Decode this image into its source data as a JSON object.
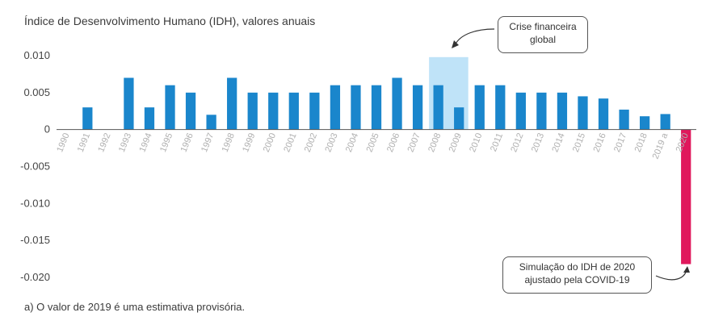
{
  "title": "Índice de Desenvolvimento Humano (IDH), valores anuais",
  "footnote": "a) O valor de 2019 é uma estimativa provisória.",
  "annotations": {
    "crisis": [
      "Crise financeira",
      "global"
    ],
    "covid": [
      "Simulação do IDH de 2020",
      "ajustado pela COVID-19"
    ]
  },
  "colors": {
    "bar": "#1a86cc",
    "bar_2020": "#e0185c",
    "crisis_band": "#bfe3f8",
    "axis": "#555555"
  },
  "chart_data": {
    "type": "bar",
    "title": "Índice de Desenvolvimento Humano (IDH), valores anuais",
    "xlabel": "",
    "ylabel": "",
    "ylim": [
      -0.02,
      0.01
    ],
    "yticks": [
      0.01,
      0.005,
      0,
      -0.005,
      -0.01,
      -0.015,
      -0.02
    ],
    "ytick_labels": [
      "0.010",
      "0.005",
      "0",
      "-0.005",
      "-0.010",
      "-0.015",
      "-0.020"
    ],
    "categories": [
      "1990",
      "1991",
      "1992",
      "1993",
      "1994",
      "1995",
      "1996",
      "1997",
      "1998",
      "1999",
      "2000",
      "2001",
      "2002",
      "2003",
      "2004",
      "2005",
      "2006",
      "2007",
      "2008",
      "2009",
      "2010",
      "2011",
      "2012",
      "2013",
      "2014",
      "2015",
      "2016",
      "2017",
      "2018",
      "2019 a",
      "2020"
    ],
    "values": [
      null,
      0.003,
      null,
      0.007,
      0.003,
      0.006,
      0.005,
      0.002,
      0.007,
      0.005,
      0.005,
      0.005,
      0.005,
      0.006,
      0.006,
      0.006,
      0.007,
      0.006,
      0.006,
      0.003,
      0.006,
      0.006,
      0.005,
      0.005,
      0.005,
      0.0045,
      0.0042,
      0.0027,
      0.0018,
      0.0021,
      -0.0182
    ],
    "highlight_range": [
      "2008",
      "2009"
    ],
    "grid": false,
    "legend": "none"
  }
}
